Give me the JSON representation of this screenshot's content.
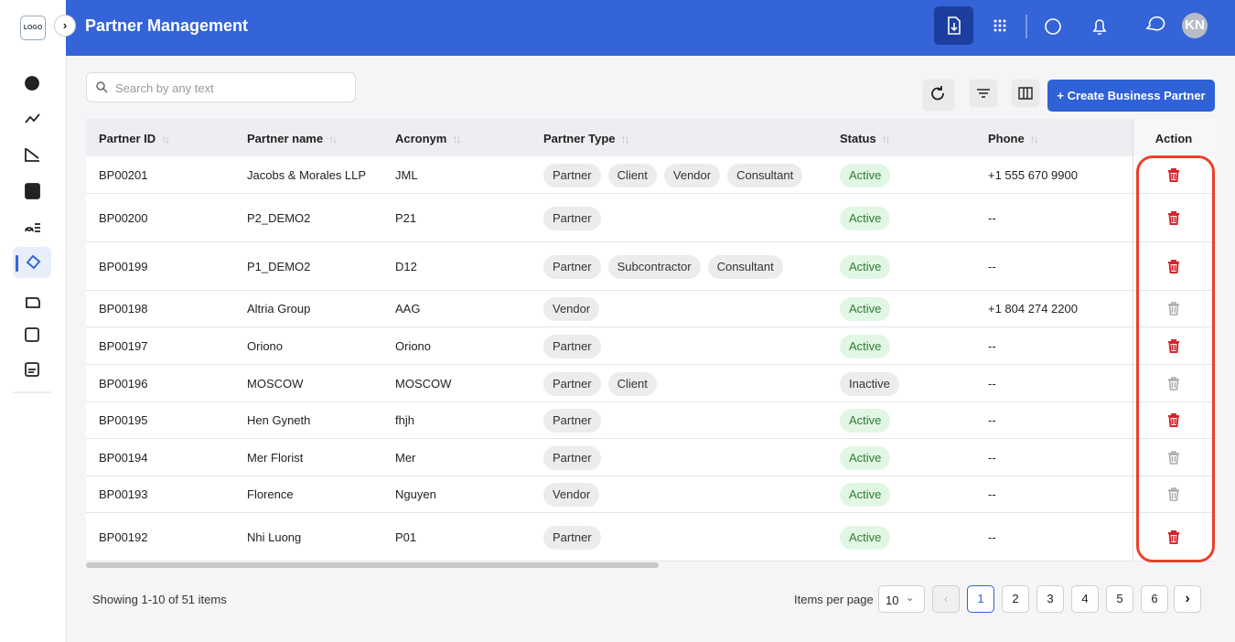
{
  "sidebar": {
    "logo": "LOGO"
  },
  "header": {
    "title": "Partner Management",
    "avatar": "KN"
  },
  "toolbar": {
    "search_placeholder": "Search by any text",
    "create_button": "+ Create Business Partner"
  },
  "table": {
    "columns": [
      "Partner ID",
      "Partner name",
      "Acronym",
      "Partner Type",
      "Status",
      "Phone",
      "Action"
    ],
    "rows": [
      {
        "id": "BP00201",
        "name": "Jacobs & Morales LLP",
        "acronym": "JML",
        "types": [
          "Partner",
          "Client",
          "Vendor",
          "Consultant"
        ],
        "status": "Active",
        "phone": "+1 555 670 9900",
        "delete_enabled": true
      },
      {
        "id": "BP00200",
        "name": "P2_DEMO2",
        "acronym": "P21",
        "types": [
          "Partner"
        ],
        "status": "Active",
        "phone": "--",
        "delete_enabled": true
      },
      {
        "id": "BP00199",
        "name": "P1_DEMO2",
        "acronym": "D12",
        "types": [
          "Partner",
          "Subcontractor",
          "Consultant"
        ],
        "status": "Active",
        "phone": "--",
        "delete_enabled": true
      },
      {
        "id": "BP00198",
        "name": "Altria Group",
        "acronym": "AAG",
        "types": [
          "Vendor"
        ],
        "status": "Active",
        "phone": "+1 804 274 2200",
        "delete_enabled": false
      },
      {
        "id": "BP00197",
        "name": "Oriono",
        "acronym": "Oriono",
        "types": [
          "Partner"
        ],
        "status": "Active",
        "phone": "--",
        "delete_enabled": true
      },
      {
        "id": "BP00196",
        "name": "MOSCOW",
        "acronym": "MOSCOW",
        "types": [
          "Partner",
          "Client"
        ],
        "status": "Inactive",
        "phone": "--",
        "delete_enabled": false
      },
      {
        "id": "BP00195",
        "name": "Hen Gyneth",
        "acronym": "fhjh",
        "types": [
          "Partner"
        ],
        "status": "Active",
        "phone": "--",
        "delete_enabled": true
      },
      {
        "id": "BP00194",
        "name": "Mer Florist",
        "acronym": "Mer",
        "types": [
          "Partner"
        ],
        "status": "Active",
        "phone": "--",
        "delete_enabled": false
      },
      {
        "id": "BP00193",
        "name": "Florence",
        "acronym": "Nguyen",
        "types": [
          "Vendor"
        ],
        "status": "Active",
        "phone": "--",
        "delete_enabled": false
      },
      {
        "id": "BP00192",
        "name": "Nhi Luong",
        "acronym": "P01",
        "types": [
          "Partner"
        ],
        "status": "Active",
        "phone": "--",
        "delete_enabled": true
      }
    ]
  },
  "footer": {
    "summary": "Showing 1-10 of 51 items",
    "per_page_label": "Items per page",
    "per_page": 10,
    "pages": [
      1,
      2,
      3,
      4,
      5,
      6
    ],
    "current_page": 1
  }
}
